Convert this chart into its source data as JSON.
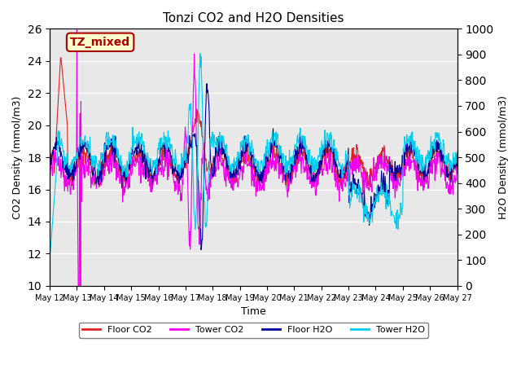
{
  "title": "Tonzi CO2 and H2O Densities",
  "xlabel": "Time",
  "ylabel_left": "CO2 Density (mmol/m3)",
  "ylabel_right": "H2O Density (mmol/m3)",
  "ylim_left": [
    10,
    26
  ],
  "ylim_right": [
    0,
    1000
  ],
  "yticks_left": [
    10,
    12,
    14,
    16,
    18,
    20,
    22,
    24,
    26
  ],
  "yticks_right": [
    0,
    100,
    200,
    300,
    400,
    500,
    600,
    700,
    800,
    900,
    1000
  ],
  "annotation_text": "TZ_mixed",
  "annotation_color": "#aa0000",
  "annotation_bg": "#ffffcc",
  "annotation_border": "#aa0000",
  "colors": {
    "floor_co2": "#dd2222",
    "tower_co2": "#ee00ee",
    "floor_h2o": "#000099",
    "tower_h2o": "#00ccee"
  },
  "legend_labels": [
    "Floor CO2",
    "Tower CO2",
    "Floor H2O",
    "Tower H2O"
  ],
  "n_points": 900,
  "bg_color": "#e8e8e8",
  "grid_color": "white"
}
